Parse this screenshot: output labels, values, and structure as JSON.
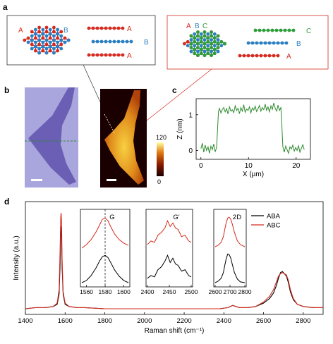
{
  "panels": {
    "a": {
      "label": "a",
      "bilayer_lattice_labels": [
        "A",
        "B"
      ],
      "bilayer_stack_labels": [
        "A",
        "B",
        "A"
      ],
      "trilayer_lattice_labels": [
        "A",
        "B",
        "C"
      ],
      "trilayer_stack_labels": [
        "C",
        "B",
        "A"
      ]
    },
    "b": {
      "label": "b",
      "colorbar_ticks": [
        "120",
        "0"
      ]
    },
    "c": {
      "label": "c",
      "chart_data": {
        "type": "line",
        "xlabel": "X (µm)",
        "ylabel": "Z (nm)",
        "xlim": [
          -1,
          23
        ],
        "ylim": [
          -0.25,
          1.45
        ],
        "xticks": [
          0,
          10,
          20
        ],
        "yticks": [
          0,
          1
        ],
        "series": [
          {
            "color": "#2e8b2e",
            "x": [
              0.0,
              0.3,
              0.6,
              0.9,
              1.2,
              1.5,
              1.8,
              2.1,
              2.4,
              2.7,
              3.0,
              3.3,
              3.5,
              3.7,
              3.9,
              4.2,
              4.5,
              4.8,
              5.1,
              5.4,
              5.7,
              6.0,
              6.3,
              6.6,
              6.9,
              7.2,
              7.5,
              7.8,
              8.1,
              8.4,
              8.7,
              9.0,
              9.3,
              9.6,
              9.9,
              10.2,
              10.5,
              10.8,
              11.1,
              11.4,
              11.7,
              12.0,
              12.3,
              12.6,
              12.9,
              13.2,
              13.5,
              13.8,
              14.1,
              14.4,
              14.7,
              15.0,
              15.3,
              15.6,
              15.9,
              16.2,
              16.5,
              16.8,
              17.0,
              17.2,
              17.5,
              17.8,
              18.1,
              18.4,
              18.7,
              19.0,
              19.3,
              19.6,
              19.9,
              20.2,
              20.5,
              20.8,
              21.1,
              21.4,
              21.7
            ],
            "y": [
              0.05,
              0.2,
              -0.05,
              0.15,
              0.0,
              0.1,
              -0.08,
              0.12,
              0.02,
              0.18,
              -0.04,
              0.08,
              0.6,
              1.1,
              1.18,
              1.05,
              1.15,
              1.2,
              1.08,
              1.17,
              1.02,
              1.22,
              1.1,
              1.14,
              1.06,
              1.25,
              1.12,
              1.18,
              1.03,
              1.2,
              1.1,
              1.28,
              1.07,
              1.16,
              1.12,
              1.22,
              1.05,
              1.19,
              1.13,
              1.24,
              1.09,
              1.17,
              1.26,
              1.1,
              1.2,
              1.14,
              1.3,
              1.12,
              1.22,
              1.08,
              1.25,
              1.15,
              1.33,
              1.18,
              1.1,
              1.27,
              1.12,
              1.2,
              0.7,
              0.1,
              -0.05,
              0.12,
              0.02,
              -0.08,
              0.1,
              0.04,
              0.15,
              -0.02,
              0.08,
              0.0,
              0.13,
              -0.05,
              0.06,
              0.16,
              0.02
            ]
          }
        ]
      }
    },
    "d": {
      "label": "d",
      "chart_data": {
        "type": "line",
        "xlabel": "Raman shift (cm⁻¹)",
        "ylabel": "Intensity (a.u.)",
        "xlim": [
          1400,
          2900
        ],
        "ylim": [
          0,
          1.0
        ],
        "xticks": [
          1400,
          1600,
          1800,
          2000,
          2200,
          2400,
          2600,
          2800
        ],
        "legend_position": "right",
        "legend": [
          "ABA",
          "ABC"
        ],
        "series": [
          {
            "name": "ABA",
            "color": "#000000",
            "x": [
              1400,
              1450,
              1500,
              1540,
              1560,
              1570,
              1575,
              1578,
              1580,
              1582,
              1585,
              1590,
              1600,
              1620,
              1660,
              1700,
              1800,
              1900,
              2000,
              2100,
              2200,
              2300,
              2380,
              2420,
              2445,
              2460,
              2480,
              2520,
              2560,
              2600,
              2630,
              2650,
              2665,
              2675,
              2685,
              2695,
              2705,
              2715,
              2725,
              2735,
              2750,
              2770,
              2800,
              2850,
              2900
            ],
            "y": [
              0.05,
              0.06,
              0.06,
              0.07,
              0.09,
              0.18,
              0.45,
              0.72,
              0.78,
              0.7,
              0.42,
              0.18,
              0.09,
              0.07,
              0.06,
              0.06,
              0.05,
              0.05,
              0.05,
              0.05,
              0.05,
              0.05,
              0.05,
              0.06,
              0.08,
              0.07,
              0.06,
              0.06,
              0.07,
              0.1,
              0.14,
              0.19,
              0.26,
              0.32,
              0.37,
              0.38,
              0.36,
              0.34,
              0.28,
              0.2,
              0.13,
              0.09,
              0.07,
              0.06,
              0.06
            ]
          },
          {
            "name": "ABC",
            "color": "#d62a1e",
            "x": [
              1400,
              1450,
              1500,
              1540,
              1560,
              1570,
              1575,
              1578,
              1580,
              1582,
              1585,
              1590,
              1600,
              1620,
              1660,
              1700,
              1800,
              1900,
              2000,
              2100,
              2200,
              2300,
              2380,
              2420,
              2445,
              2460,
              2480,
              2520,
              2560,
              2600,
              2630,
              2650,
              2665,
              2675,
              2685,
              2695,
              2705,
              2715,
              2725,
              2735,
              2750,
              2770,
              2800,
              2850,
              2900
            ],
            "y": [
              0.05,
              0.06,
              0.06,
              0.07,
              0.1,
              0.22,
              0.58,
              0.86,
              0.9,
              0.82,
              0.5,
              0.2,
              0.1,
              0.07,
              0.06,
              0.06,
              0.05,
              0.05,
              0.05,
              0.05,
              0.05,
              0.05,
              0.05,
              0.06,
              0.08,
              0.07,
              0.06,
              0.06,
              0.07,
              0.11,
              0.16,
              0.22,
              0.29,
              0.34,
              0.36,
              0.37,
              0.36,
              0.35,
              0.3,
              0.22,
              0.14,
              0.09,
              0.07,
              0.06,
              0.06
            ]
          }
        ]
      },
      "insets": [
        {
          "label": "G",
          "xticks": [
            1560,
            1580,
            1600
          ],
          "dashed_line_x": 1580,
          "xlim": [
            1555,
            1605
          ],
          "series": [
            {
              "name": "ABC",
              "color": "#d62a1e",
              "x": [
                1555,
                1560,
                1565,
                1570,
                1574,
                1577,
                1580,
                1583,
                1586,
                1590,
                1595,
                1600,
                1605
              ],
              "y": [
                0.5,
                0.55,
                0.62,
                0.72,
                0.82,
                0.9,
                0.92,
                0.88,
                0.8,
                0.7,
                0.62,
                0.57,
                0.54
              ]
            },
            {
              "name": "ABA",
              "color": "#000000",
              "x": [
                1555,
                1560,
                1565,
                1570,
                1574,
                1577,
                1580,
                1583,
                1586,
                1590,
                1595,
                1600,
                1605
              ],
              "y": [
                0.02,
                0.05,
                0.12,
                0.22,
                0.32,
                0.38,
                0.4,
                0.37,
                0.3,
                0.2,
                0.11,
                0.05,
                0.02
              ]
            }
          ]
        },
        {
          "label": "G′",
          "xticks": [
            2400,
            2450,
            2500
          ],
          "xlim": [
            2400,
            2500
          ],
          "series": [
            {
              "name": "ABC",
              "color": "#d62a1e",
              "x": [
                2400,
                2408,
                2416,
                2424,
                2432,
                2440,
                2446,
                2452,
                2458,
                2464,
                2470,
                2478,
                2486,
                2494,
                2500
              ],
              "y": [
                0.55,
                0.6,
                0.58,
                0.68,
                0.72,
                0.78,
                0.88,
                0.8,
                0.85,
                0.78,
                0.76,
                0.66,
                0.68,
                0.6,
                0.58
              ]
            },
            {
              "name": "ABA",
              "color": "#000000",
              "x": [
                2400,
                2408,
                2416,
                2424,
                2432,
                2440,
                2446,
                2452,
                2458,
                2464,
                2470,
                2478,
                2486,
                2494,
                2500
              ],
              "y": [
                0.08,
                0.12,
                0.1,
                0.2,
                0.24,
                0.32,
                0.4,
                0.3,
                0.36,
                0.28,
                0.26,
                0.18,
                0.2,
                0.12,
                0.1
              ]
            }
          ]
        },
        {
          "label": "2D",
          "xticks": [
            2600,
            2700,
            2800
          ],
          "xlim": [
            2600,
            2800
          ],
          "series": [
            {
              "name": "ABC",
              "color": "#d62a1e",
              "x": [
                2600,
                2620,
                2640,
                2655,
                2665,
                2675,
                2685,
                2695,
                2705,
                2715,
                2730,
                2750,
                2770,
                2800
              ],
              "y": [
                0.52,
                0.54,
                0.58,
                0.66,
                0.76,
                0.86,
                0.92,
                0.93,
                0.9,
                0.84,
                0.72,
                0.6,
                0.55,
                0.52
              ]
            },
            {
              "name": "ABA",
              "color": "#000000",
              "x": [
                2600,
                2620,
                2640,
                2655,
                2665,
                2675,
                2685,
                2695,
                2705,
                2715,
                2730,
                2750,
                2770,
                2800
              ],
              "y": [
                0.02,
                0.04,
                0.08,
                0.16,
                0.26,
                0.36,
                0.42,
                0.41,
                0.36,
                0.28,
                0.16,
                0.07,
                0.03,
                0.02
              ]
            }
          ]
        }
      ]
    }
  },
  "colors": {
    "A": "#d62a1e",
    "B": "#2b7fc2",
    "C": "#2e9e3a",
    "optical": "#a9a6dd",
    "flake": "#6b5fb5"
  }
}
